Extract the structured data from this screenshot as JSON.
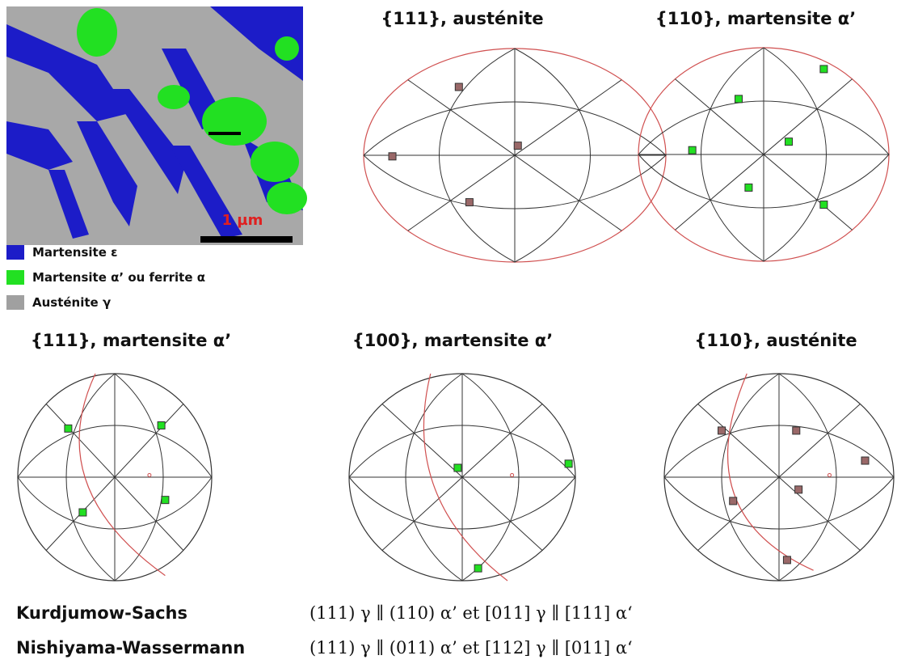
{
  "micrograph": {
    "scale_bar": "1 µm"
  },
  "legend": [
    {
      "label": "Martensite ε",
      "color": "#1c1cc8"
    },
    {
      "label": "Martensite α’ ou ferrite α",
      "color": "#22e022"
    },
    {
      "label": "Austénite γ",
      "color": "#a0a0a0"
    }
  ],
  "pole_figures": [
    {
      "title": "{111}, austénite"
    },
    {
      "title": "{110}, martensite α’"
    },
    {
      "title": "{111}, martensite α’"
    },
    {
      "title": "{100}, martensite α’"
    },
    {
      "title": "{110}, austénite"
    }
  ],
  "relations": [
    {
      "name": "Kurdjumow-Sachs",
      "formula": "(111) γ ∥ (110) α’ et [011] γ  ∥ [111] α‘"
    },
    {
      "name": "Nishiyama-Wassermann",
      "formula": "(111) γ ∥ (011) α’ et [112] γ ∥ [011] α‘"
    }
  ]
}
